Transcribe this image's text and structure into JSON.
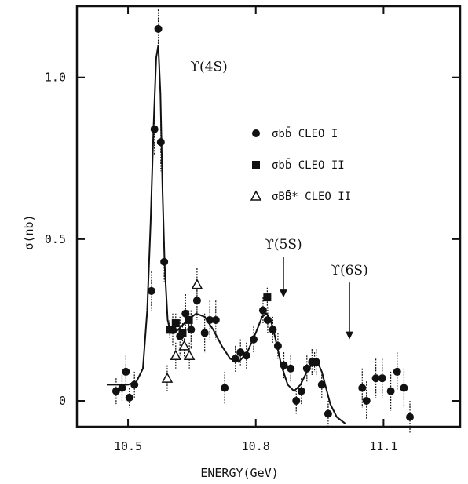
{
  "chart_data": {
    "type": "scatter",
    "title": "",
    "xlabel": "ENERGY(GeV)",
    "ylabel": "σ(nb)",
    "xlim": [
      10.38,
      11.28
    ],
    "ylim": [
      -0.08,
      1.22
    ],
    "x_ticks": [
      {
        "value": 10.5,
        "label": "10.5"
      },
      {
        "value": 10.8,
        "label": "10.8"
      },
      {
        "value": 11.1,
        "label": "11.1"
      }
    ],
    "y_ticks": [
      {
        "value": 0,
        "label": "0"
      },
      {
        "value": 0.5,
        "label": "0.5"
      },
      {
        "value": 1.0,
        "label": "1.0"
      }
    ],
    "grid": false,
    "legend_position": "top-right",
    "series": [
      {
        "name": "σbb̄ CLEO I",
        "marker": "circle",
        "points": [
          {
            "x": 10.472,
            "y": 0.03,
            "err": 0.04
          },
          {
            "x": 10.486,
            "y": 0.04,
            "err": 0.04
          },
          {
            "x": 10.495,
            "y": 0.09,
            "err": 0.05
          },
          {
            "x": 10.503,
            "y": 0.01,
            "err": 0.03
          },
          {
            "x": 10.515,
            "y": 0.05,
            "err": 0.04
          },
          {
            "x": 10.555,
            "y": 0.34,
            "err": 0.06
          },
          {
            "x": 10.562,
            "y": 0.84,
            "err": 0.08
          },
          {
            "x": 10.571,
            "y": 1.15,
            "err": 0.06
          },
          {
            "x": 10.577,
            "y": 0.8,
            "err": 0.09
          },
          {
            "x": 10.585,
            "y": 0.43,
            "err": 0.06
          },
          {
            "x": 10.605,
            "y": 0.22,
            "err": 0.05
          },
          {
            "x": 10.622,
            "y": 0.2,
            "err": 0.06
          },
          {
            "x": 10.635,
            "y": 0.27,
            "err": 0.06
          },
          {
            "x": 10.648,
            "y": 0.22,
            "err": 0.06
          },
          {
            "x": 10.662,
            "y": 0.31,
            "err": 0.06
          },
          {
            "x": 10.68,
            "y": 0.21,
            "err": 0.06
          },
          {
            "x": 10.692,
            "y": 0.25,
            "err": 0.06
          },
          {
            "x": 10.706,
            "y": 0.25,
            "err": 0.06
          },
          {
            "x": 10.727,
            "y": 0.04,
            "err": 0.05
          },
          {
            "x": 10.752,
            "y": 0.13,
            "err": 0.04
          },
          {
            "x": 10.764,
            "y": 0.15,
            "err": 0.04
          },
          {
            "x": 10.778,
            "y": 0.14,
            "err": 0.04
          },
          {
            "x": 10.795,
            "y": 0.19,
            "err": 0.04
          },
          {
            "x": 10.817,
            "y": 0.28,
            "err": 0.04
          },
          {
            "x": 10.828,
            "y": 0.25,
            "err": 0.04
          },
          {
            "x": 10.84,
            "y": 0.22,
            "err": 0.04
          },
          {
            "x": 10.852,
            "y": 0.17,
            "err": 0.04
          },
          {
            "x": 10.866,
            "y": 0.11,
            "err": 0.04
          },
          {
            "x": 10.882,
            "y": 0.1,
            "err": 0.04
          },
          {
            "x": 10.895,
            "y": 0.0,
            "err": 0.04
          },
          {
            "x": 10.907,
            "y": 0.03,
            "err": 0.04
          },
          {
            "x": 10.92,
            "y": 0.1,
            "err": 0.04
          },
          {
            "x": 10.932,
            "y": 0.12,
            "err": 0.04
          },
          {
            "x": 10.942,
            "y": 0.12,
            "err": 0.04
          },
          {
            "x": 10.955,
            "y": 0.05,
            "err": 0.04
          },
          {
            "x": 10.97,
            "y": -0.04,
            "err": 0.04
          },
          {
            "x": 11.05,
            "y": 0.04,
            "err": 0.06
          },
          {
            "x": 11.06,
            "y": 0.0,
            "err": 0.06
          },
          {
            "x": 11.082,
            "y": 0.07,
            "err": 0.06
          },
          {
            "x": 11.097,
            "y": 0.07,
            "err": 0.06
          },
          {
            "x": 11.117,
            "y": 0.03,
            "err": 0.06
          },
          {
            "x": 11.132,
            "y": 0.09,
            "err": 0.06
          },
          {
            "x": 11.148,
            "y": 0.04,
            "err": 0.06
          },
          {
            "x": 11.162,
            "y": -0.05,
            "err": 0.05
          }
        ]
      },
      {
        "name": "σbb̄ CLEO II",
        "marker": "square",
        "points": [
          {
            "x": 10.598,
            "y": 0.22,
            "err": 0.03
          },
          {
            "x": 10.612,
            "y": 0.24,
            "err": 0.03
          },
          {
            "x": 10.628,
            "y": 0.21,
            "err": 0.03
          },
          {
            "x": 10.643,
            "y": 0.25,
            "err": 0.03
          },
          {
            "x": 10.827,
            "y": 0.32,
            "err": 0.03
          },
          {
            "x": 10.938,
            "y": 0.12,
            "err": 0.03
          }
        ]
      },
      {
        "name": "σBB̄* CLEO II",
        "marker": "triangle",
        "points": [
          {
            "x": 10.592,
            "y": 0.07,
            "err": 0.04
          },
          {
            "x": 10.612,
            "y": 0.14,
            "err": 0.04
          },
          {
            "x": 10.632,
            "y": 0.17,
            "err": 0.04
          },
          {
            "x": 10.644,
            "y": 0.14,
            "err": 0.04
          },
          {
            "x": 10.662,
            "y": 0.36,
            "err": 0.05
          }
        ]
      }
    ],
    "fit_curve": {
      "x": [
        10.45,
        10.5,
        10.52,
        10.535,
        10.545,
        10.553,
        10.56,
        10.566,
        10.571,
        10.576,
        10.581,
        10.586,
        10.593,
        10.6,
        10.61,
        10.625,
        10.64,
        10.66,
        10.68,
        10.7,
        10.72,
        10.74,
        10.76,
        10.78,
        10.8,
        10.815,
        10.825,
        10.835,
        10.845,
        10.86,
        10.875,
        10.89,
        10.905,
        10.92,
        10.935,
        10.945,
        10.955,
        10.965,
        10.975,
        10.99,
        11.01
      ],
      "y": [
        0.05,
        0.05,
        0.06,
        0.1,
        0.28,
        0.55,
        0.85,
        1.06,
        1.1,
        0.95,
        0.65,
        0.42,
        0.25,
        0.21,
        0.21,
        0.23,
        0.25,
        0.27,
        0.26,
        0.22,
        0.17,
        0.13,
        0.12,
        0.15,
        0.21,
        0.26,
        0.27,
        0.25,
        0.2,
        0.11,
        0.05,
        0.03,
        0.05,
        0.09,
        0.12,
        0.12,
        0.09,
        0.04,
        -0.01,
        -0.05,
        -0.07
      ]
    },
    "annotations": [
      {
        "text": "ϒ(4S)",
        "x": 10.69,
        "y": 1.02,
        "arrow": false
      },
      {
        "text": "ϒ(5S)",
        "x": 10.865,
        "y": 0.47,
        "arrow_to": {
          "x": 10.865,
          "y": 0.32
        }
      },
      {
        "text": "ϒ(6S)",
        "x": 11.02,
        "y": 0.39,
        "arrow_to": {
          "x": 11.02,
          "y": 0.19
        }
      }
    ]
  }
}
